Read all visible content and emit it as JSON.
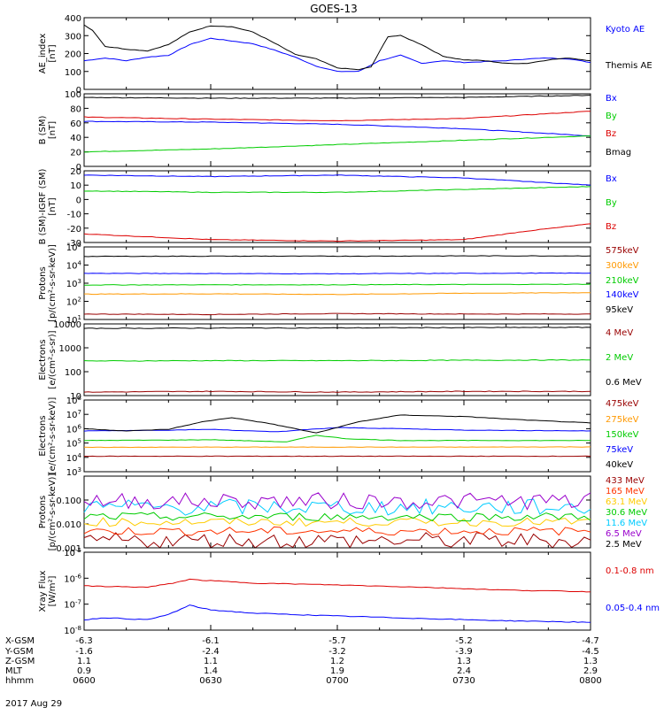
{
  "title": "GOES-13",
  "date_label": "2017 Aug 29",
  "bottom_axis": {
    "row_labels": [
      "X-GSM",
      "Y-GSM",
      "Z-GSM",
      "MLT",
      "hhmm"
    ],
    "columns": [
      {
        "x": "-6.3",
        "y": "-1.6",
        "z": "1.1",
        "mlt": "0.9",
        "hhmm": "0600"
      },
      {
        "x": "-6.1",
        "y": "-2.4",
        "z": "1.1",
        "mlt": "1.4",
        "hhmm": "0630"
      },
      {
        "x": "-5.7",
        "y": "-3.2",
        "z": "1.2",
        "mlt": "1.9",
        "hhmm": "0700"
      },
      {
        "x": "-5.2",
        "y": "-3.9",
        "z": "1.3",
        "mlt": "2.4",
        "hhmm": "0730"
      },
      {
        "x": "-4.7",
        "y": "-4.5",
        "z": "1.3",
        "mlt": "2.9",
        "hhmm": "0800"
      }
    ]
  },
  "chart_data": [
    {
      "type": "line",
      "ylabel": "AE_index\n[nT]",
      "yscale": "linear",
      "ylim": [
        0,
        400
      ],
      "yticks": [
        "0",
        "100",
        "200",
        "300",
        "400"
      ],
      "xlim_minutes": [
        0,
        120
      ],
      "series": [
        {
          "name": "Kyoto AE",
          "color": "#0000ff",
          "x": [
            0,
            5,
            10,
            15,
            20,
            25,
            30,
            35,
            40,
            45,
            50,
            55,
            60,
            65,
            70,
            75,
            80,
            85,
            90,
            95,
            100,
            105,
            110,
            115,
            120
          ],
          "y": [
            160,
            175,
            160,
            180,
            190,
            250,
            285,
            270,
            255,
            220,
            180,
            130,
            100,
            100,
            160,
            190,
            145,
            160,
            150,
            155,
            160,
            170,
            175,
            170,
            150
          ]
        },
        {
          "name": "Themis AE",
          "color": "#000000",
          "x": [
            0,
            2,
            5,
            10,
            15,
            20,
            25,
            30,
            35,
            40,
            45,
            50,
            55,
            60,
            65,
            68,
            72,
            75,
            80,
            85,
            90,
            95,
            100,
            105,
            110,
            115,
            120
          ],
          "y": [
            360,
            330,
            240,
            225,
            215,
            250,
            320,
            355,
            350,
            320,
            260,
            195,
            170,
            120,
            110,
            125,
            295,
            300,
            250,
            185,
            165,
            160,
            145,
            145,
            165,
            175,
            160
          ]
        }
      ]
    },
    {
      "type": "line",
      "ylabel": "B (SM)\n[nT]",
      "yscale": "linear",
      "ylim": [
        0,
        100
      ],
      "yticks": [
        "0",
        "20",
        "40",
        "60",
        "80",
        "100"
      ],
      "xlim_minutes": [
        0,
        120
      ],
      "series": [
        {
          "name": "Bx",
          "color": "#0000ff",
          "x": [
            0,
            30,
            60,
            90,
            120
          ],
          "y": [
            62,
            61,
            58,
            52,
            42
          ]
        },
        {
          "name": "By",
          "color": "#00cc00",
          "x": [
            0,
            30,
            60,
            90,
            120
          ],
          "y": [
            20,
            24,
            30,
            36,
            42
          ]
        },
        {
          "name": "Bz",
          "color": "#dd0000",
          "x": [
            0,
            30,
            60,
            90,
            120
          ],
          "y": [
            68,
            65,
            63,
            66,
            76
          ]
        },
        {
          "name": "Bmag",
          "color": "#000000",
          "x": [
            0,
            30,
            60,
            90,
            120
          ],
          "y": [
            95,
            94,
            94,
            95,
            98
          ]
        }
      ]
    },
    {
      "type": "line",
      "ylabel": "B (SM)-IGRF (SM)\n[nT]",
      "yscale": "linear",
      "ylim": [
        -30,
        20
      ],
      "yticks": [
        "-30",
        "-20",
        "-10",
        "0",
        "10",
        "20"
      ],
      "xlim_minutes": [
        0,
        120
      ],
      "series": [
        {
          "name": "Bx",
          "color": "#0000ff",
          "x": [
            0,
            30,
            60,
            90,
            120
          ],
          "y": [
            17,
            16,
            17,
            15,
            10
          ]
        },
        {
          "name": "By",
          "color": "#00cc00",
          "x": [
            0,
            30,
            60,
            90,
            120
          ],
          "y": [
            6,
            5,
            5,
            7,
            9
          ]
        },
        {
          "name": "Bz",
          "color": "#dd0000",
          "x": [
            0,
            30,
            60,
            90,
            105,
            120
          ],
          "y": [
            -24,
            -28,
            -29,
            -28,
            -22,
            -17
          ]
        }
      ]
    },
    {
      "type": "line",
      "ylabel": "Protons\n[p/(cm²-s-sr-keV)]",
      "yscale": "log",
      "ylim": [
        10,
        100000
      ],
      "yticks": [
        "10^1",
        "10^2",
        "10^3",
        "10^4",
        "10^5"
      ],
      "xlim_minutes": [
        0,
        120
      ],
      "series": [
        {
          "name": "575keV",
          "color": "#990000",
          "x": [
            0,
            30,
            60,
            90,
            120
          ],
          "y": [
            20,
            19,
            21,
            20,
            20
          ]
        },
        {
          "name": "300keV",
          "color": "#ff9900",
          "x": [
            0,
            30,
            60,
            90,
            120
          ],
          "y": [
            250,
            260,
            240,
            280,
            300
          ]
        },
        {
          "name": "210keV",
          "color": "#00cc00",
          "x": [
            0,
            30,
            60,
            90,
            120
          ],
          "y": [
            800,
            820,
            820,
            850,
            880
          ]
        },
        {
          "name": "140keV",
          "color": "#0000ff",
          "x": [
            0,
            30,
            60,
            90,
            120
          ],
          "y": [
            3500,
            3400,
            3300,
            3500,
            3600
          ]
        },
        {
          "name": "95keV",
          "color": "#000000",
          "x": [
            0,
            30,
            60,
            90,
            120
          ],
          "y": [
            30000,
            31000,
            31000,
            32000,
            32000
          ]
        }
      ]
    },
    {
      "type": "line",
      "ylabel": "Electrons\n[e/(cm²-s-sr)]",
      "yscale": "log",
      "ylim": [
        10,
        10000
      ],
      "yticks": [
        "10",
        "100",
        "1000",
        "10000"
      ],
      "xlim_minutes": [
        0,
        120
      ],
      "series": [
        {
          "name": "4 MeV",
          "color": "#990000",
          "x": [
            0,
            30,
            60,
            90,
            120
          ],
          "y": [
            14,
            15,
            14,
            15,
            15
          ]
        },
        {
          "name": "2 MeV",
          "color": "#00cc00",
          "x": [
            0,
            30,
            60,
            90,
            120
          ],
          "y": [
            280,
            290,
            290,
            300,
            310
          ]
        },
        {
          "name": "0.6 MeV",
          "color": "#000000",
          "x": [
            0,
            30,
            60,
            90,
            120
          ],
          "y": [
            6500,
            6700,
            6800,
            7000,
            7200
          ]
        }
      ]
    },
    {
      "type": "line",
      "ylabel": "Electrons\n[e/(cm²-s-sr-keV)]",
      "yscale": "log",
      "ylim": [
        1000,
        100000000
      ],
      "yticks": [
        "10^3",
        "10^4",
        "10^5",
        "10^6",
        "10^7",
        "10^8"
      ],
      "xlim_minutes": [
        0,
        120
      ],
      "series": [
        {
          "name": "475keV",
          "color": "#990000",
          "x": [
            0,
            30,
            60,
            90,
            120
          ],
          "y": [
            12000,
            12000,
            12000,
            12000,
            12000
          ]
        },
        {
          "name": "275keV",
          "color": "#ff9900",
          "x": [
            0,
            30,
            60,
            90,
            120
          ],
          "y": [
            50000,
            52000,
            52000,
            52000,
            54000
          ]
        },
        {
          "name": "150keV",
          "color": "#00cc00",
          "x": [
            0,
            20,
            30,
            48,
            55,
            62,
            75,
            90,
            120
          ],
          "y": [
            150000,
            160000,
            170000,
            120000,
            350000,
            200000,
            150000,
            150000,
            150000
          ]
        },
        {
          "name": "75keV",
          "color": "#0000ff",
          "x": [
            0,
            20,
            30,
            45,
            60,
            75,
            90,
            120
          ],
          "y": [
            700000,
            800000,
            900000,
            600000,
            1200000,
            1000000,
            800000,
            700000
          ]
        },
        {
          "name": "40keV",
          "color": "#000000",
          "x": [
            0,
            10,
            20,
            28,
            35,
            45,
            55,
            65,
            75,
            90,
            105,
            120
          ],
          "y": [
            1000000,
            700000,
            900000,
            3000000,
            6000000,
            2000000,
            500000,
            3000000,
            9000000,
            7000000,
            4000000,
            2500000
          ]
        }
      ]
    },
    {
      "type": "line",
      "ylabel": "Protons\n[p/(cm²-s-sr-keV)]",
      "yscale": "log",
      "ylim": [
        0.001,
        1.0
      ],
      "yticks": [
        "0.001",
        "0.010",
        "0.100"
      ],
      "xlim_minutes": [
        0,
        120
      ],
      "series": [
        {
          "name": "433 MeV",
          "color": "#990000",
          "noise": "high",
          "base": 0.002
        },
        {
          "name": "165 MeV",
          "color": "#ff3300",
          "noise": "med",
          "base": 0.005
        },
        {
          "name": "63.1 MeV",
          "color": "#ffcc00",
          "noise": "med",
          "base": 0.012
        },
        {
          "name": "30.6 MeV",
          "color": "#00cc00",
          "noise": "med",
          "base": 0.02
        },
        {
          "name": "11.6 MeV",
          "color": "#00ccff",
          "noise": "high",
          "base": 0.05
        },
        {
          "name": "6.5 MeV",
          "color": "#9900cc",
          "noise": "high",
          "base": 0.09
        },
        {
          "name": "2.5 MeV",
          "color": "#000000",
          "noise": "none",
          "base": 0.001
        }
      ]
    },
    {
      "type": "line",
      "ylabel": "Xray Flux\n[W/m²]",
      "yscale": "log",
      "ylim": [
        1e-08,
        1e-05
      ],
      "yticks": [
        "10^-8",
        "10^-7",
        "10^-6",
        "10^-5"
      ],
      "xlim_minutes": [
        0,
        120
      ],
      "series": [
        {
          "name": "0.1-0.8 nm",
          "color": "#dd0000",
          "x": [
            0,
            15,
            20,
            25,
            30,
            40,
            60,
            80,
            100,
            120
          ],
          "y": [
            5e-07,
            4.5e-07,
            6e-07,
            9e-07,
            8e-07,
            6.5e-07,
            5.5e-07,
            4.5e-07,
            3.5e-07,
            3e-07
          ]
        },
        {
          "name": "0.05-0.4 nm",
          "color": "#0000ff",
          "x": [
            0,
            5,
            15,
            20,
            25,
            30,
            40,
            60,
            80,
            100,
            120
          ],
          "y": [
            2.5e-08,
            3e-08,
            2.5e-08,
            4e-08,
            9e-08,
            6e-08,
            4.5e-08,
            3.5e-08,
            2.8e-08,
            2.3e-08,
            2e-08
          ]
        }
      ]
    }
  ]
}
